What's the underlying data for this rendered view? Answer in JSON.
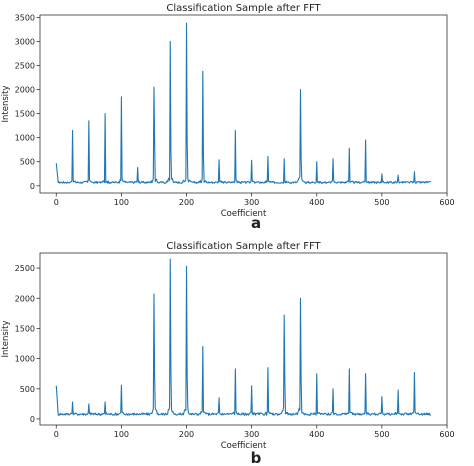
{
  "figure": {
    "panel_labels": [
      "a",
      "b"
    ]
  },
  "chart_data": [
    {
      "type": "line",
      "panel_label": "a",
      "title": "Classification Sample after FFT",
      "xlabel": "Coefficient",
      "ylabel": "Intensity",
      "xlim": [
        -25,
        600
      ],
      "ylim": [
        -150,
        3550
      ],
      "xticks": [
        0,
        100,
        200,
        300,
        400,
        500,
        600
      ],
      "yticks": [
        0,
        500,
        1000,
        1500,
        2000,
        2500,
        3000,
        3500
      ],
      "grid": false,
      "color": "#1f77b4",
      "x_range": [
        0,
        575
      ],
      "baseline": 70,
      "start_value": 470,
      "peaks": [
        {
          "x": 25,
          "y": 1150
        },
        {
          "x": 50,
          "y": 1350
        },
        {
          "x": 75,
          "y": 1500
        },
        {
          "x": 100,
          "y": 1850
        },
        {
          "x": 125,
          "y": 380
        },
        {
          "x": 150,
          "y": 2050
        },
        {
          "x": 151,
          "y": 950
        },
        {
          "x": 175,
          "y": 3000
        },
        {
          "x": 176,
          "y": 760
        },
        {
          "x": 200,
          "y": 3380
        },
        {
          "x": 201,
          "y": 900
        },
        {
          "x": 225,
          "y": 2380
        },
        {
          "x": 226,
          "y": 600
        },
        {
          "x": 250,
          "y": 540
        },
        {
          "x": 275,
          "y": 1150
        },
        {
          "x": 300,
          "y": 530
        },
        {
          "x": 325,
          "y": 610
        },
        {
          "x": 350,
          "y": 560
        },
        {
          "x": 375,
          "y": 2000
        },
        {
          "x": 376,
          "y": 560
        },
        {
          "x": 400,
          "y": 500
        },
        {
          "x": 425,
          "y": 560
        },
        {
          "x": 450,
          "y": 780
        },
        {
          "x": 475,
          "y": 950
        },
        {
          "x": 500,
          "y": 250
        },
        {
          "x": 525,
          "y": 220
        },
        {
          "x": 550,
          "y": 290
        }
      ]
    },
    {
      "type": "line",
      "panel_label": "b",
      "title": "Classification Sample after FFT",
      "xlabel": "Coefficient",
      "ylabel": "Intensity",
      "xlim": [
        -25,
        600
      ],
      "ylim": [
        -100,
        2750
      ],
      "xticks": [
        0,
        100,
        200,
        300,
        400,
        500,
        600
      ],
      "yticks": [
        0,
        500,
        1000,
        1500,
        2000,
        2500
      ],
      "grid": false,
      "color": "#1f77b4",
      "x_range": [
        0,
        575
      ],
      "baseline": 80,
      "start_value": 550,
      "peaks": [
        {
          "x": 25,
          "y": 280
        },
        {
          "x": 50,
          "y": 250
        },
        {
          "x": 75,
          "y": 280
        },
        {
          "x": 100,
          "y": 560
        },
        {
          "x": 150,
          "y": 2070
        },
        {
          "x": 151,
          "y": 700
        },
        {
          "x": 175,
          "y": 2650
        },
        {
          "x": 176,
          "y": 800
        },
        {
          "x": 200,
          "y": 2530
        },
        {
          "x": 201,
          "y": 700
        },
        {
          "x": 225,
          "y": 1200
        },
        {
          "x": 250,
          "y": 350
        },
        {
          "x": 275,
          "y": 830
        },
        {
          "x": 300,
          "y": 550
        },
        {
          "x": 325,
          "y": 850
        },
        {
          "x": 350,
          "y": 1720
        },
        {
          "x": 351,
          "y": 600
        },
        {
          "x": 375,
          "y": 2000
        },
        {
          "x": 376,
          "y": 640
        },
        {
          "x": 400,
          "y": 750
        },
        {
          "x": 425,
          "y": 500
        },
        {
          "x": 450,
          "y": 830
        },
        {
          "x": 475,
          "y": 750
        },
        {
          "x": 500,
          "y": 370
        },
        {
          "x": 525,
          "y": 480
        },
        {
          "x": 550,
          "y": 770
        }
      ]
    }
  ]
}
